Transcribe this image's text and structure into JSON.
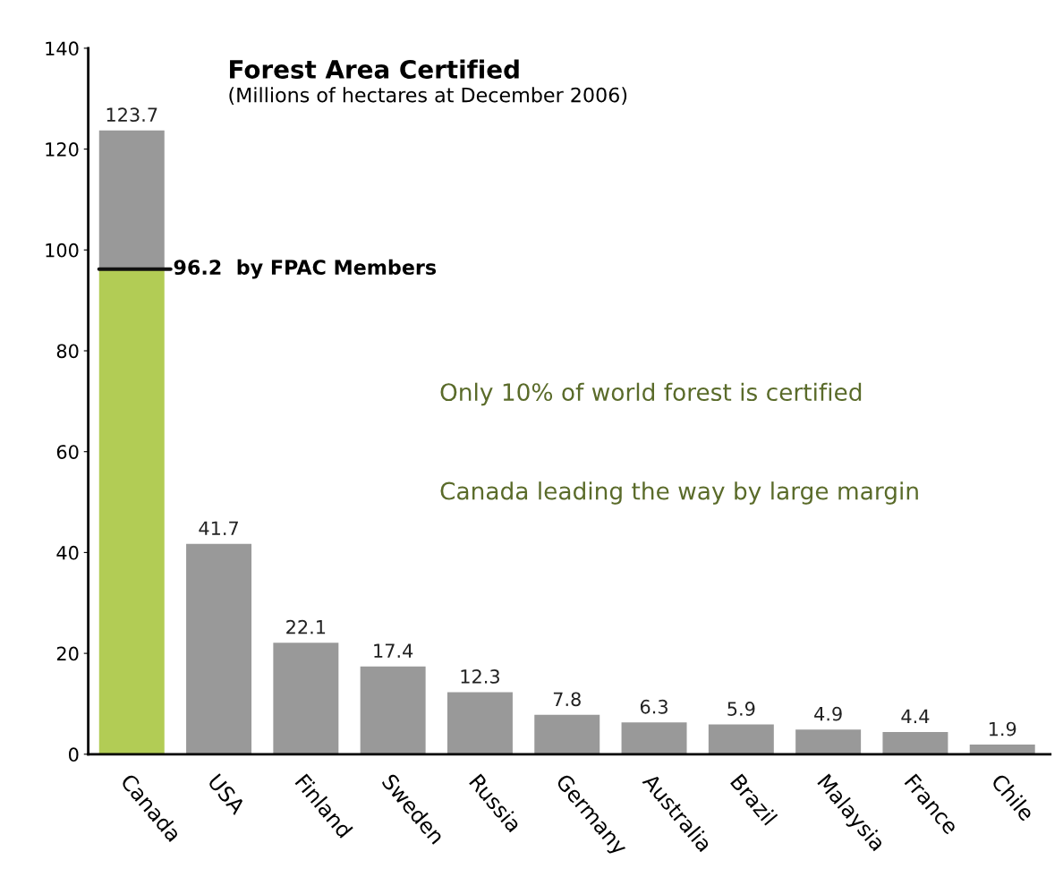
{
  "chart_data": {
    "type": "bar",
    "title": "Forest Area Certified",
    "subtitle": "(Millions of hectares at December 2006)",
    "categories": [
      "Canada",
      "USA",
      "Finland",
      "Sweden",
      "Russia",
      "Germany",
      "Australia",
      "Brazil",
      "Malaysia",
      "France",
      "Chile"
    ],
    "stacked": true,
    "series": [
      {
        "color": "#b2cc55",
        "values": [
          96.2,
          0,
          0,
          0,
          0,
          0,
          0,
          0,
          0,
          0,
          0
        ]
      },
      {
        "color": "#999999",
        "values": [
          27.5,
          41.7,
          22.1,
          17.4,
          12.3,
          7.8,
          6.3,
          5.9,
          4.9,
          4.4,
          1.9
        ]
      }
    ],
    "totals": [
      "123.7",
      "41.7",
      "22.1",
      "17.4",
      "12.3",
      "7.8",
      "6.3",
      "5.9",
      "4.9",
      "4.4",
      "1.9"
    ],
    "ylim": [
      0,
      140
    ],
    "yticks": [
      0,
      20,
      40,
      60,
      80,
      100,
      120,
      140
    ],
    "grid": false,
    "legend": false,
    "annotations": [
      {
        "text": "96.2  by FPAC Members",
        "x": "Canada",
        "y": 96.2
      },
      "Only 10% of world forest is certified",
      "Canada leading the way by large margin"
    ]
  }
}
